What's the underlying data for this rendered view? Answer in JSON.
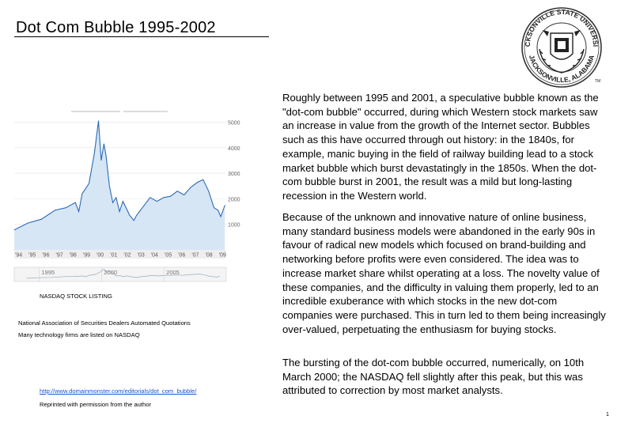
{
  "title": "Dot Com Bubble 1995-2002",
  "seal": {
    "text_top": "JACKSONVILLE STATE UNIVERSITY",
    "text_bottom": "JACKSONVILLE, ALABAMA",
    "tm": "TM"
  },
  "paragraphs": [
    "Roughly between 1995 and 2001, a speculative bubble known as the \"dot-com bubble\" occurred, during which Western stock markets saw an increase in value from the growth of the Internet sector. Bubbles such as this have occurred through out history: in the 1840s, for example, manic buying in the field of railway building lead to a stock market bubble which burst devastatingly in the 1850s. When the dot-com bubble burst in 2001, the result was a mild but long-lasting recession in the Western world.",
    "Because of the unknown and innovative nature of online business, many standard business models were abandoned in the early 90s in favour of radical new models which focused on brand-building and networking before profits were even considered. The idea was to increase market share whilst operating at a loss. The novelty value of these companies, and the difficulty in valuing them properly, led to an incredible exuberance with which stocks in the new dot-com companies were purchased. This in turn led to them being increasingly over-valued, perpetuating the enthusiasm for buying stocks.",
    "The bursting of the dot-com bubble occurred, numerically, on 10th March 2000; the NASDAQ fell slightly after this peak, but this was attributed to correction by most market analysts."
  ],
  "chart_data": {
    "type": "line",
    "x_tick_labels": [
      "'94",
      "'95",
      "'96",
      "'97",
      "'98",
      "'99",
      "'00",
      "'01",
      "'02",
      "'03",
      "'04",
      "'05",
      "'06",
      "'07",
      "'08",
      "'09"
    ],
    "y_tick_labels": [
      "5000",
      "4000",
      "3000",
      "2000",
      "1000"
    ],
    "navigator_labels": [
      "1995",
      "2000",
      "2005"
    ],
    "ylim": [
      0,
      5200
    ],
    "xlim": [
      1994,
      2009.6
    ],
    "x": [
      1994.0,
      1995.0,
      1996.0,
      1997.0,
      1997.8,
      1998.5,
      1998.75,
      1999.0,
      1999.5,
      1999.9,
      2000.2,
      2000.4,
      2000.6,
      2000.75,
      2001.0,
      2001.25,
      2001.5,
      2001.75,
      2002.0,
      2002.5,
      2002.8,
      2003.0,
      2003.5,
      2004.0,
      2004.5,
      2005.0,
      2005.5,
      2006.0,
      2006.5,
      2007.0,
      2007.5,
      2007.9,
      2008.3,
      2008.7,
      2009.0,
      2009.2,
      2009.5
    ],
    "y": [
      780,
      1050,
      1200,
      1550,
      1650,
      1850,
      1500,
      2200,
      2600,
      3800,
      5050,
      3500,
      4150,
      3700,
      2500,
      1850,
      2050,
      1500,
      1900,
      1350,
      1150,
      1350,
      1700,
      2050,
      1900,
      2050,
      2100,
      2300,
      2150,
      2450,
      2650,
      2750,
      2300,
      1650,
      1550,
      1300,
      1750
    ],
    "line_color": "#2a6ab8",
    "fill_color": "#d7e6f5"
  },
  "captions": {
    "listing": "NASDAQ STOCK LISTING",
    "full_name": "National Association of Securities Dealers Automated Quotations",
    "note": "Many technology firms are listed on NASDAQ",
    "link": "http://www.domainmonster.com/editorials/dot_com_bubble/",
    "reprint": "Reprinted with permission from the author"
  },
  "page_number": "1"
}
